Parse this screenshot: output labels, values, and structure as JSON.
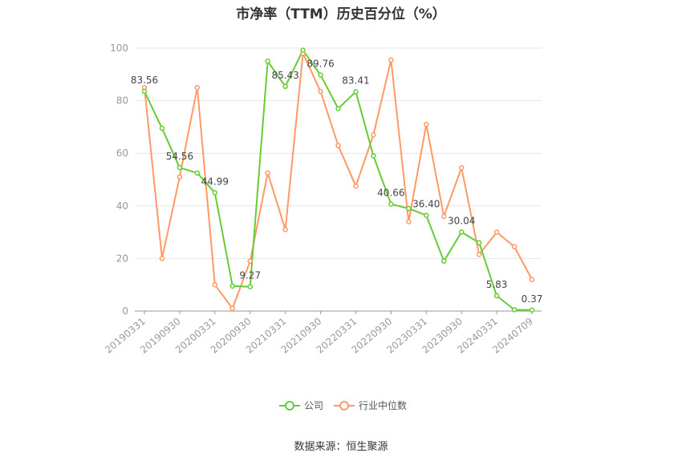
{
  "title": "市净率（TTM）历史百分位（%）",
  "source": "数据来源：恒生聚源",
  "chart_data": {
    "type": "line",
    "y_ticks": [
      "0",
      "20",
      "40",
      "60",
      "80",
      "100"
    ],
    "ylim": [
      0,
      100
    ],
    "x_tick_labels": [
      "20190331",
      "20190930",
      "20200331",
      "20200930",
      "20210331",
      "20210930",
      "20220331",
      "20220930",
      "20230331",
      "20230930",
      "20240331",
      "20240709"
    ],
    "grid": true,
    "legend_position": "bottom-center",
    "series": [
      {
        "name": "公司",
        "color": "#66cc33",
        "values": [
          83.56,
          69.5,
          54.56,
          52.5,
          44.99,
          9.5,
          9.27,
          95.0,
          85.43,
          99.2,
          89.76,
          77.0,
          83.41,
          59.0,
          40.66,
          39.0,
          36.4,
          19.0,
          30.04,
          26.0,
          5.83,
          0.5,
          0.37
        ],
        "data_labels": [
          {
            "index": 0,
            "text": "83.56"
          },
          {
            "index": 2,
            "text": "54.56"
          },
          {
            "index": 4,
            "text": "44.99"
          },
          {
            "index": 6,
            "text": "9.27"
          },
          {
            "index": 8,
            "text": "85.43"
          },
          {
            "index": 10,
            "text": "89.76"
          },
          {
            "index": 12,
            "text": "83.41"
          },
          {
            "index": 14,
            "text": "40.66"
          },
          {
            "index": 16,
            "text": "36.40"
          },
          {
            "index": 18,
            "text": "30.04"
          },
          {
            "index": 20,
            "text": "5.83"
          },
          {
            "index": 22,
            "text": "0.37"
          }
        ]
      },
      {
        "name": "行业中位数",
        "color": "#ff9966",
        "values": [
          85.0,
          20.0,
          51.0,
          85.0,
          10.0,
          1.0,
          19.0,
          52.5,
          31.0,
          98.0,
          83.5,
          63.0,
          47.5,
          67.0,
          95.5,
          34.0,
          71.0,
          36.0,
          54.5,
          21.5,
          30.0,
          24.5,
          12.0
        ]
      }
    ]
  }
}
